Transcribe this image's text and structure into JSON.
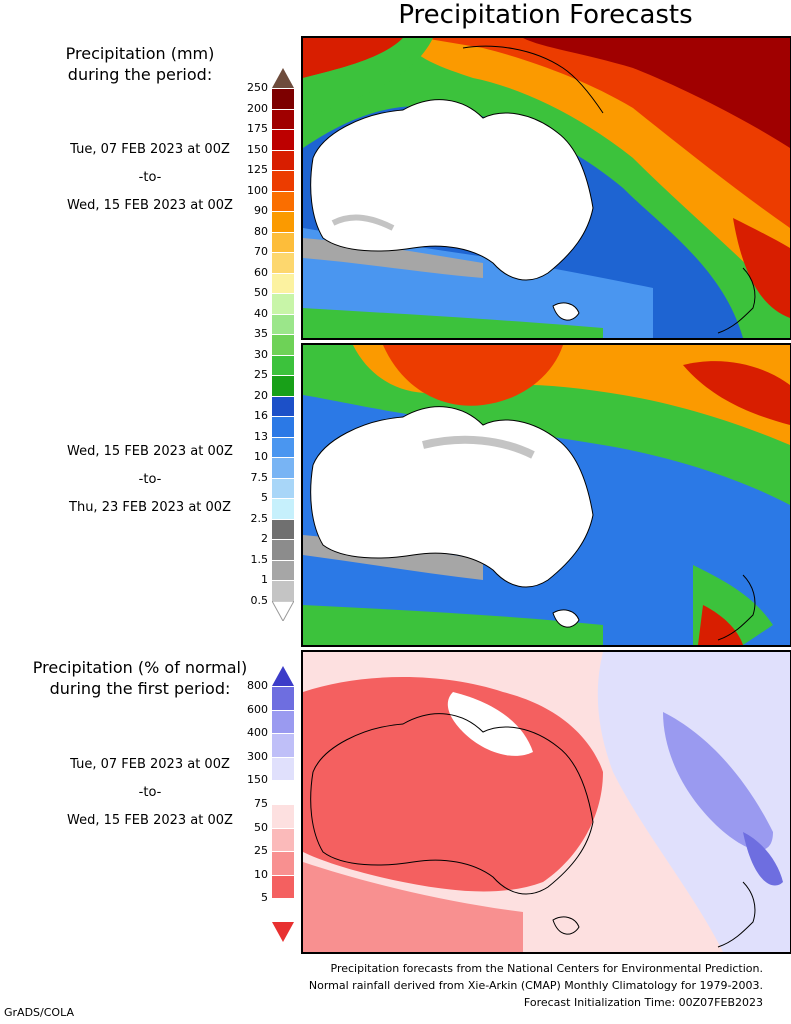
{
  "title": "Precipitation Forecasts",
  "heading_mm": [
    "Precipitation (mm)",
    "during the period:"
  ],
  "heading_pct": [
    "Precipitation (% of normal)",
    "during the first period:"
  ],
  "periods": [
    {
      "start": "Tue, 07 FEB 2023 at 00Z",
      "sep": "-to-",
      "end": "Wed, 15 FEB 2023 at 00Z"
    },
    {
      "start": "Wed, 15 FEB 2023 at 00Z",
      "sep": "-to-",
      "end": "Thu, 23 FEB 2023 at 00Z"
    },
    {
      "start": "Tue, 07 FEB 2023 at 00Z",
      "sep": "-to-",
      "end": "Wed, 15 FEB 2023 at 00Z"
    }
  ],
  "mm_scale": {
    "labels": [
      "250",
      "200",
      "175",
      "150",
      "125",
      "100",
      "90",
      "80",
      "70",
      "60",
      "50",
      "40",
      "35",
      "30",
      "25",
      "20",
      "16",
      "13",
      "10",
      "7.5",
      "5",
      "2.5",
      "2",
      "1.5",
      "1",
      "0.5"
    ],
    "colors": [
      "#6e4c3c",
      "#7d0000",
      "#a00000",
      "#bd0000",
      "#d81e00",
      "#ec3c00",
      "#fa6e00",
      "#fb9a00",
      "#fdbd3a",
      "#fdd76e",
      "#fcf2a0",
      "#c8f5a8",
      "#9be68a",
      "#6ed257",
      "#3cc23c",
      "#18a018",
      "#1c50c8",
      "#2b79e6",
      "#4a96f0",
      "#78b4f4",
      "#a8d6f8",
      "#c6f0fc",
      "#707070",
      "#8c8c8c",
      "#a6a6a6",
      "#c4c4c4"
    ]
  },
  "pct_scale": {
    "labels": [
      "800",
      "600",
      "400",
      "300",
      "150",
      "75",
      "50",
      "25",
      "10",
      "5"
    ],
    "colors": [
      "#3c3cc8",
      "#6e6ee0",
      "#9a9af0",
      "#bfbff8",
      "#e0e0fc",
      "#ffffff",
      "#fde0e0",
      "#fbbaba",
      "#f89090",
      "#f46060",
      "#e83030"
    ]
  },
  "footer": [
    "Precipitation forecasts from the National Centers for Environmental Prediction.",
    "Normal rainfall derived from Xie-Arkin (CMAP) Monthly Climatology for 1979-2003.",
    "Forecast Initialization Time: 00Z07FEB2023"
  ],
  "credit": "GrADS/COLA"
}
